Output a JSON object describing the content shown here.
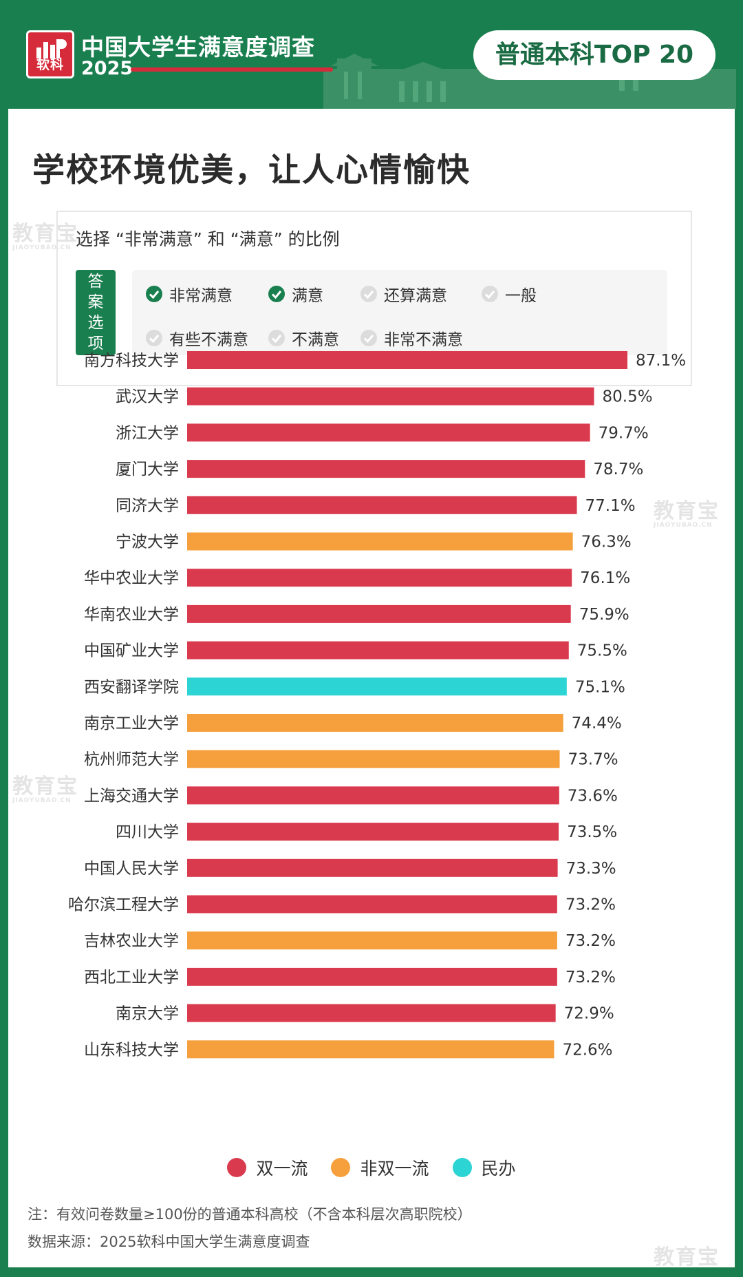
{
  "header": {
    "logo_text": "软科",
    "survey_title": "中国大学生满意度调查",
    "survey_year": "2025",
    "badge": "普通本科TOP 20"
  },
  "main_title": "学校环境优美，让人心情愉快",
  "question": {
    "text": "选择 “非常满意” 和 “满意” 的比例",
    "options_tag": "答案选项",
    "options": [
      {
        "label": "非常满意",
        "selected": true
      },
      {
        "label": "满意",
        "selected": true
      },
      {
        "label": "还算满意",
        "selected": false
      },
      {
        "label": "一般",
        "selected": false
      },
      {
        "label": "有些不满意",
        "selected": false
      },
      {
        "label": "不满意",
        "selected": false
      },
      {
        "label": "非常不满意",
        "selected": false
      }
    ]
  },
  "colors": {
    "brand_green": "#1a7f4f",
    "double_first_class": "#d93a4e",
    "non_double_first_class": "#f5a03c",
    "private": "#2dd4d4"
  },
  "chart_data": {
    "type": "bar",
    "orientation": "horizontal",
    "unit": "%",
    "xlim": [
      0,
      100
    ],
    "grid": false,
    "legend_position": "bottom",
    "legend": [
      {
        "key": "double",
        "label": "双一流",
        "color": "#d93a4e"
      },
      {
        "key": "non_double",
        "label": "非双一流",
        "color": "#f5a03c"
      },
      {
        "key": "private",
        "label": "民办",
        "color": "#2dd4d4"
      }
    ],
    "categories": [
      "南方科技大学",
      "武汉大学",
      "浙江大学",
      "厦门大学",
      "同济大学",
      "宁波大学",
      "华中农业大学",
      "华南农业大学",
      "中国矿业大学",
      "西安翻译学院",
      "南京工业大学",
      "杭州师范大学",
      "上海交通大学",
      "四川大学",
      "中国人民大学",
      "哈尔滨工程大学",
      "吉林农业大学",
      "西北工业大学",
      "南京大学",
      "山东科技大学"
    ],
    "values": [
      87.1,
      80.5,
      79.7,
      78.7,
      77.1,
      76.3,
      76.1,
      75.9,
      75.5,
      75.1,
      74.4,
      73.7,
      73.6,
      73.5,
      73.3,
      73.2,
      73.2,
      73.2,
      72.9,
      72.6
    ],
    "value_labels": [
      "87.1%",
      "80.5%",
      "79.7%",
      "78.7%",
      "77.1%",
      "76.3%",
      "76.1%",
      "75.9%",
      "75.5%",
      "75.1%",
      "74.4%",
      "73.7%",
      "73.6%",
      "73.5%",
      "73.3%",
      "73.2%",
      "73.2%",
      "73.2%",
      "72.9%",
      "72.6%"
    ],
    "groups": [
      "double",
      "double",
      "double",
      "double",
      "double",
      "non_double",
      "double",
      "double",
      "double",
      "private",
      "non_double",
      "non_double",
      "double",
      "double",
      "double",
      "double",
      "non_double",
      "double",
      "double",
      "non_double"
    ]
  },
  "footer": {
    "note": "注：有效问卷数量≥100份的普通本科高校（不含本科层次高职院校）",
    "source": "数据来源：2025软科中国大学生满意度调查"
  },
  "watermark": {
    "text": "教育宝",
    "domain": "JIAOYUBAO.CN"
  }
}
